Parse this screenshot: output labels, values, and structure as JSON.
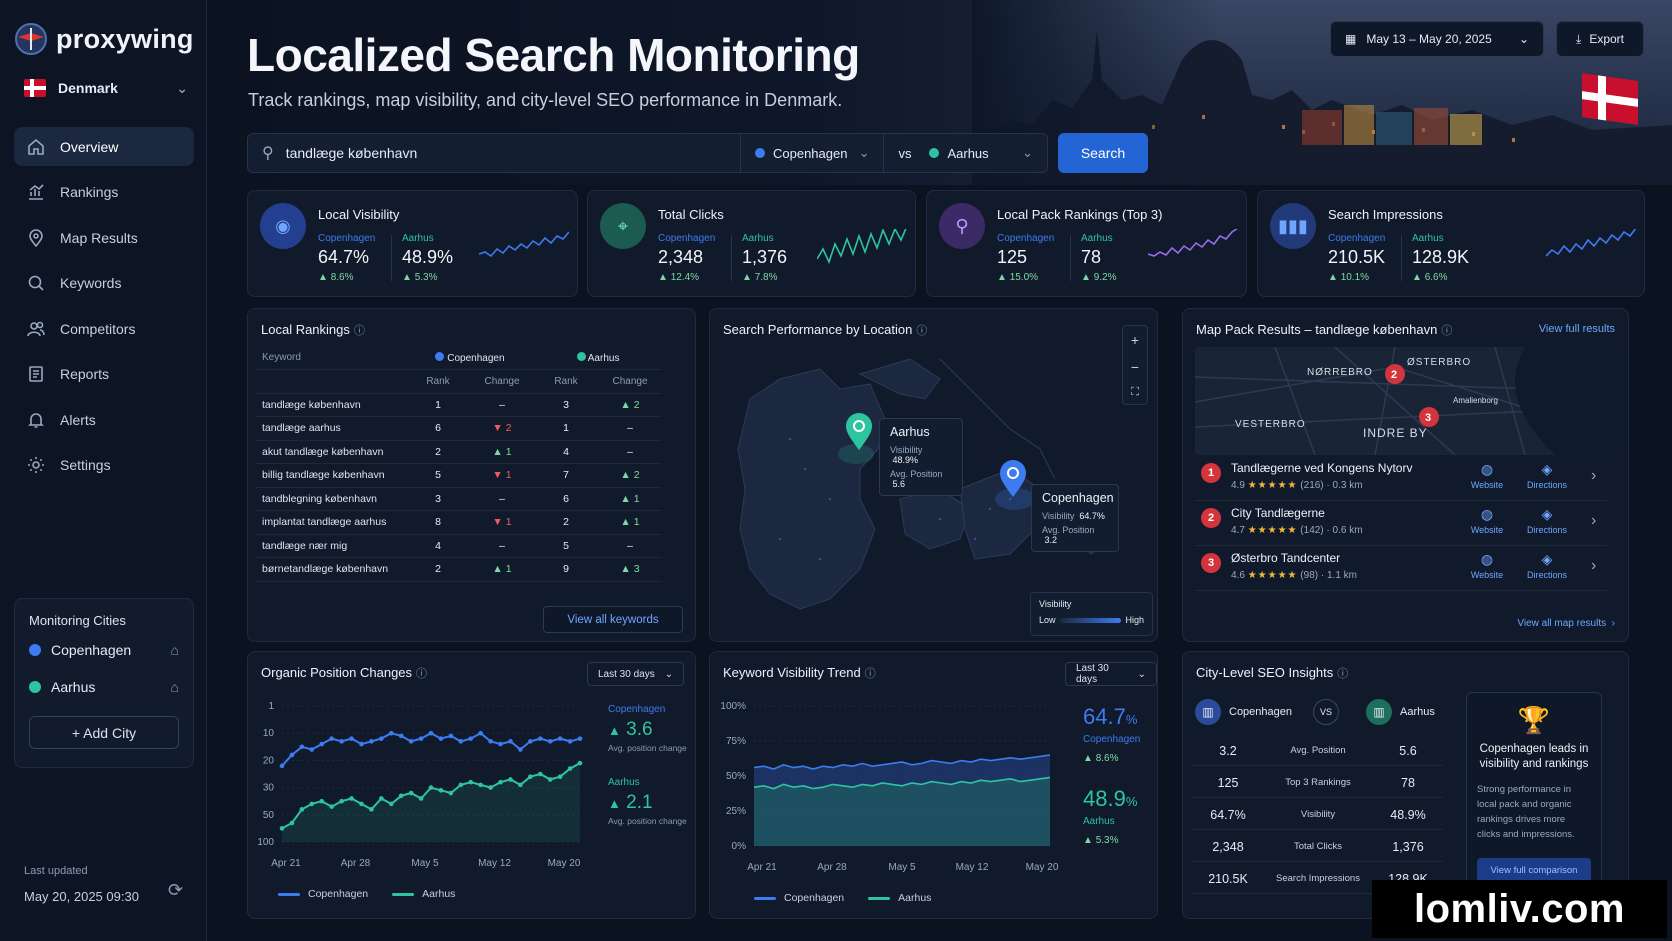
{
  "brand": {
    "name": "proxywing"
  },
  "country": {
    "name": "Denmark"
  },
  "nav": [
    "Overview",
    "Rankings",
    "Map Results",
    "Keywords",
    "Competitors",
    "Reports",
    "Alerts",
    "Settings"
  ],
  "monitoring": {
    "title": "Monitoring Cities",
    "cities": [
      "Copenhagen",
      "Aarhus"
    ],
    "add": "+ Add City"
  },
  "last_updated": {
    "label": "Last updated",
    "value": "May 20, 2025 09:30"
  },
  "header": {
    "title": "Localized Search Monitoring",
    "subtitle": "Track rankings, map visibility, and city-level SEO performance in Denmark.",
    "date_range": "May 13 – May 20, 2025",
    "export": "Export"
  },
  "search": {
    "query": "tandlæge københavn",
    "city_a": "Copenhagen",
    "vs": "vs",
    "city_b": "Aarhus",
    "button": "Search"
  },
  "colors": {
    "copenhagen": "#3d7bf0",
    "aarhus": "#2ec4a0",
    "accent": "#2465d6"
  },
  "kpis": [
    {
      "title": "Local Visibility",
      "icon": "eye-icon",
      "a_label": "Copenhagen",
      "a_val": "64.7%",
      "a_chg": "8.6%",
      "b_label": "Aarhus",
      "b_val": "48.9%",
      "b_chg": "5.3%"
    },
    {
      "title": "Total Clicks",
      "icon": "cursor-icon",
      "a_label": "Copenhagen",
      "a_val": "2,348",
      "a_chg": "12.4%",
      "b_label": "Aarhus",
      "b_val": "1,376",
      "b_chg": "7.8%"
    },
    {
      "title": "Local Pack Rankings (Top 3)",
      "icon": "pin-icon",
      "a_label": "Copenhagen",
      "a_val": "125",
      "a_chg": "15.0%",
      "b_label": "Aarhus",
      "b_val": "78",
      "b_chg": "9.2%"
    },
    {
      "title": "Search Impressions",
      "icon": "bars-icon",
      "a_label": "Copenhagen",
      "a_val": "210.5K",
      "a_chg": "10.1%",
      "b_label": "Aarhus",
      "b_val": "128.9K",
      "b_chg": "6.6%"
    }
  ],
  "rankings": {
    "title": "Local Rankings",
    "col_keyword": "Keyword",
    "col_a": "Copenhagen",
    "col_b": "Aarhus",
    "col_rank": "Rank",
    "col_change": "Change",
    "view_all": "View all keywords",
    "rows": [
      [
        "tandlæge københavn",
        "1",
        "–",
        "3",
        "▲ 2"
      ],
      [
        "tandlæge aarhus",
        "6",
        "▼ 2",
        "1",
        "–"
      ],
      [
        "akut tandlæge københavn",
        "2",
        "▲ 1",
        "4",
        "–"
      ],
      [
        "billig tandlæge københavn",
        "5",
        "▼ 1",
        "7",
        "▲ 2"
      ],
      [
        "tandblegning københavn",
        "3",
        "–",
        "6",
        "▲ 1"
      ],
      [
        "implantat tandlæge aarhus",
        "8",
        "▼ 1",
        "2",
        "▲ 1"
      ],
      [
        "tandlæge nær mig",
        "4",
        "–",
        "5",
        "–"
      ],
      [
        "børnetandlæge københavn",
        "2",
        "▲ 1",
        "9",
        "▲ 3"
      ]
    ]
  },
  "map": {
    "title": "Search Performance by Location",
    "aarhus": {
      "name": "Aarhus",
      "vis_label": "Visibility",
      "vis": "48.9%",
      "pos_label": "Avg. Position",
      "pos": "5.6"
    },
    "copenhagen": {
      "name": "Copenhagen",
      "vis_label": "Visibility",
      "vis": "64.7%",
      "pos_label": "Avg. Position",
      "pos": "3.2"
    },
    "legend": {
      "title": "Visibility",
      "low": "Low",
      "high": "High"
    }
  },
  "mappack": {
    "title": "Map Pack Results – tandlæge københavn",
    "view_full": "View full results",
    "view_all": "View all map results",
    "labels": [
      "NØRREBRO",
      "ØSTERBRO",
      "VESTERBRO",
      "INDRE BY",
      "Amalienborg"
    ],
    "website": "Website",
    "directions": "Directions",
    "results": [
      {
        "rank": "1",
        "name": "Tandlægerne ved Kongens Nytorv",
        "rating": "4.9",
        "reviews": "(216)",
        "dist": "0.3 km"
      },
      {
        "rank": "2",
        "name": "City Tandlægerne",
        "rating": "4.7",
        "reviews": "(142)",
        "dist": "0.6 km"
      },
      {
        "rank": "3",
        "name": "Østerbro Tandcenter",
        "rating": "4.6",
        "reviews": "(98)",
        "dist": "1.1 km"
      }
    ]
  },
  "chart_data": [
    {
      "type": "line",
      "title": "Organic Position Changes",
      "period": "Last 30 days",
      "x_ticks": [
        "Apr 21",
        "Apr 28",
        "May 5",
        "May 12",
        "May 20"
      ],
      "y_ticks": [
        "1",
        "10",
        "20",
        "30",
        "50",
        "100"
      ],
      "series": [
        {
          "name": "Copenhagen",
          "values": [
            3.2,
            2.8,
            2.5,
            2.6,
            2.4,
            2.2,
            2.3,
            2.2,
            2.4,
            2.3,
            2.2,
            2.0,
            2.1,
            2.3,
            2.2,
            2.0,
            2.2,
            2.1,
            2.3,
            2.2,
            2.0,
            2.3,
            2.4,
            2.3,
            2.6,
            2.3,
            2.2,
            2.3,
            2.2,
            2.3,
            2.2
          ]
        },
        {
          "name": "Aarhus",
          "values": [
            5.5,
            5.3,
            4.8,
            4.6,
            4.5,
            4.7,
            4.5,
            4.4,
            4.6,
            4.8,
            4.4,
            4.6,
            4.3,
            4.2,
            4.4,
            4.0,
            4.1,
            4.2,
            3.9,
            3.8,
            3.9,
            4.0,
            3.8,
            3.7,
            3.9,
            3.6,
            3.5,
            3.7,
            3.6,
            3.3,
            3.1
          ]
        }
      ],
      "summary": [
        {
          "name": "Copenhagen",
          "value": "3.6",
          "label": "Avg. position change"
        },
        {
          "name": "Aarhus",
          "value": "2.1",
          "label": "Avg. position change"
        }
      ]
    },
    {
      "type": "area",
      "title": "Keyword Visibility Trend",
      "period": "Last 30 days",
      "x_ticks": [
        "Apr 21",
        "Apr 28",
        "May 5",
        "May 12",
        "May 20"
      ],
      "y_ticks": [
        "0%",
        "25%",
        "50%",
        "75%",
        "100%"
      ],
      "ylim": [
        0,
        100
      ],
      "series": [
        {
          "name": "Copenhagen",
          "values": [
            56,
            57,
            55,
            58,
            56,
            57,
            55,
            57,
            56,
            58,
            57,
            59,
            57,
            58,
            59,
            60,
            58,
            59,
            61,
            60,
            59,
            61,
            60,
            62,
            61,
            62,
            63,
            62,
            63,
            64,
            65
          ]
        },
        {
          "name": "Aarhus",
          "values": [
            42,
            43,
            41,
            44,
            42,
            43,
            41,
            42,
            44,
            43,
            42,
            44,
            43,
            45,
            44,
            43,
            45,
            44,
            46,
            45,
            44,
            46,
            45,
            47,
            46,
            47,
            48,
            46,
            47,
            48,
            49
          ]
        }
      ],
      "summary": [
        {
          "name": "Copenhagen",
          "value": "64.7",
          "unit": "%",
          "chg": "8.6%"
        },
        {
          "name": "Aarhus",
          "value": "48.9",
          "unit": "%",
          "chg": "5.3%"
        }
      ]
    }
  ],
  "insights": {
    "title": "City-Level SEO Insights",
    "a": "Copenhagen",
    "vs": "VS",
    "b": "Aarhus",
    "rows": [
      [
        "3.2",
        "Avg. Position",
        "5.6"
      ],
      [
        "125",
        "Top 3 Rankings",
        "78"
      ],
      [
        "64.7%",
        "Visibility",
        "48.9%"
      ],
      [
        "2,348",
        "Total Clicks",
        "1,376"
      ],
      [
        "210.5K",
        "Search Impressions",
        "128.9K"
      ]
    ],
    "callout_title": "Copenhagen leads in visibility and rankings",
    "callout_text": "Strong performance in local pack and organic rankings drives more clicks and impressions.",
    "callout_btn": "View full comparison"
  },
  "watermark": "lomliv.com"
}
